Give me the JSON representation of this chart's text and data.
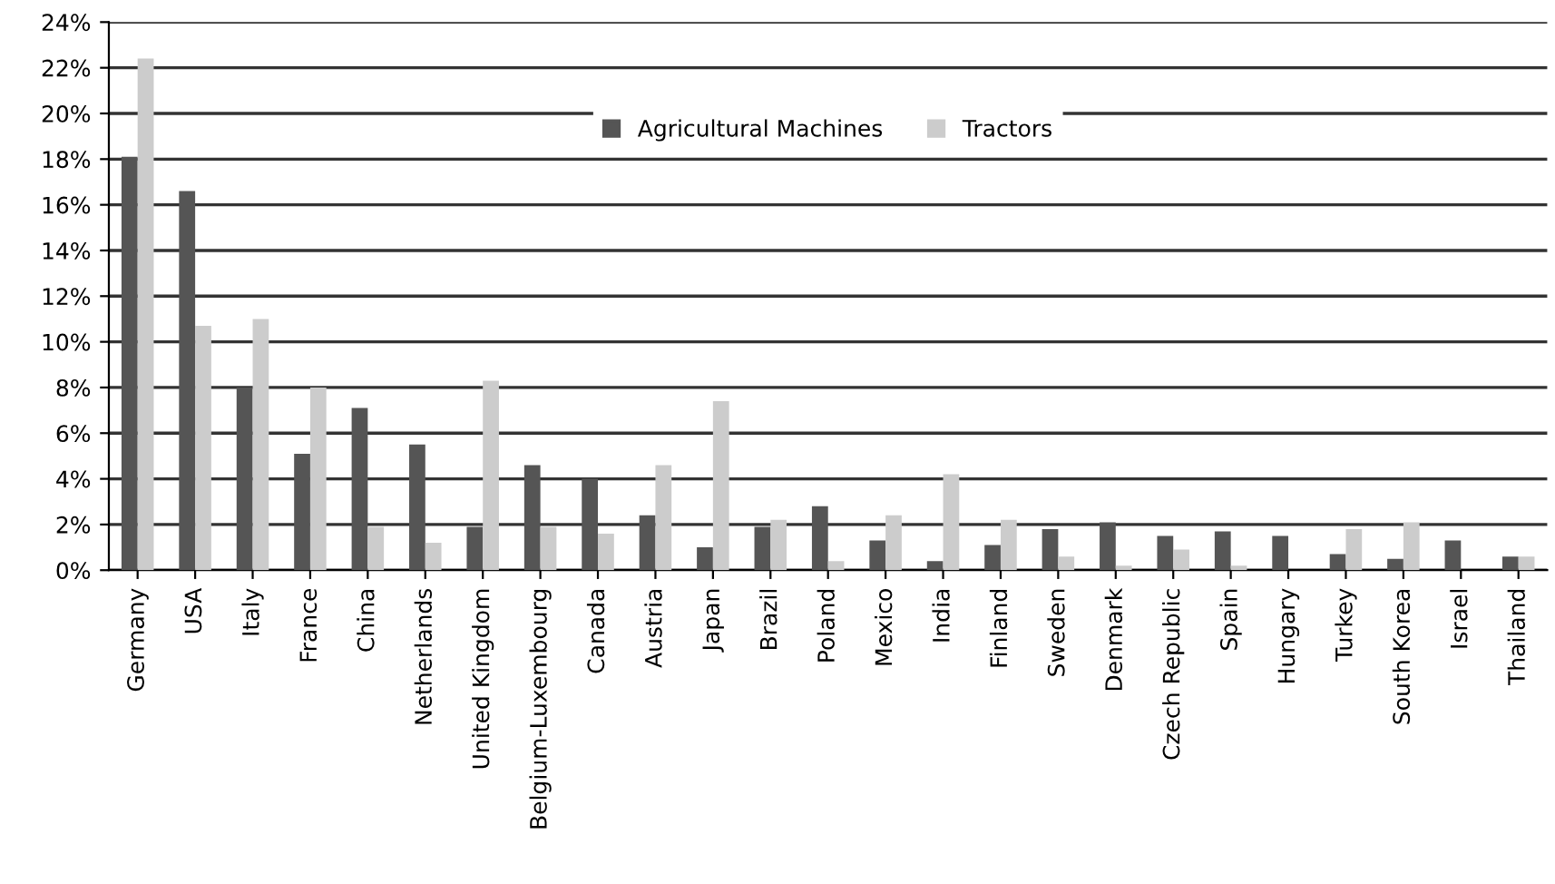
{
  "chart_data": {
    "type": "bar",
    "categories": [
      "Germany",
      "USA",
      "Italy",
      "France",
      "China",
      "Netherlands",
      "United Kingdom",
      "Belgium-Luxembourg",
      "Canada",
      "Austria",
      "Japan",
      "Brazil",
      "Poland",
      "Mexico",
      "India",
      "Finland",
      "Sweden",
      "Denmark",
      "Czech Republic",
      "Spain",
      "Hungary",
      "Turkey",
      "South Korea",
      "Israel",
      "Thailand"
    ],
    "series": [
      {
        "name": "Agricultural Machines",
        "color": "#555555",
        "values": [
          18.1,
          16.6,
          8.0,
          5.1,
          7.1,
          5.5,
          1.9,
          4.6,
          4.0,
          2.4,
          1.0,
          1.9,
          2.8,
          1.3,
          0.4,
          1.1,
          1.8,
          2.1,
          1.5,
          1.7,
          1.5,
          0.7,
          0.5,
          1.3,
          0.6
        ]
      },
      {
        "name": "Tractors",
        "color": "#cccccc",
        "values": [
          22.4,
          10.7,
          11.0,
          8.0,
          1.9,
          1.2,
          8.3,
          1.9,
          1.6,
          4.6,
          7.4,
          2.2,
          0.4,
          2.4,
          4.2,
          2.2,
          0.6,
          0.2,
          0.9,
          0.2,
          null,
          1.8,
          2.1,
          null,
          0.6
        ]
      }
    ],
    "ylim": [
      0,
      24
    ],
    "yticks": [
      {
        "value": 0,
        "label": "0%"
      },
      {
        "value": 2,
        "label": "2%"
      },
      {
        "value": 4,
        "label": "4%"
      },
      {
        "value": 6,
        "label": "6%"
      },
      {
        "value": 8,
        "label": "8%"
      },
      {
        "value": 10,
        "label": "10%"
      },
      {
        "value": 12,
        "label": "12%"
      },
      {
        "value": 14,
        "label": "14%"
      },
      {
        "value": 16,
        "label": "16%"
      },
      {
        "value": 18,
        "label": "18%"
      },
      {
        "value": 20,
        "label": "20%"
      },
      {
        "value": 22,
        "label": "22%"
      },
      {
        "value": 24,
        "label": "24%"
      }
    ],
    "grid": "y",
    "legend": "top"
  }
}
